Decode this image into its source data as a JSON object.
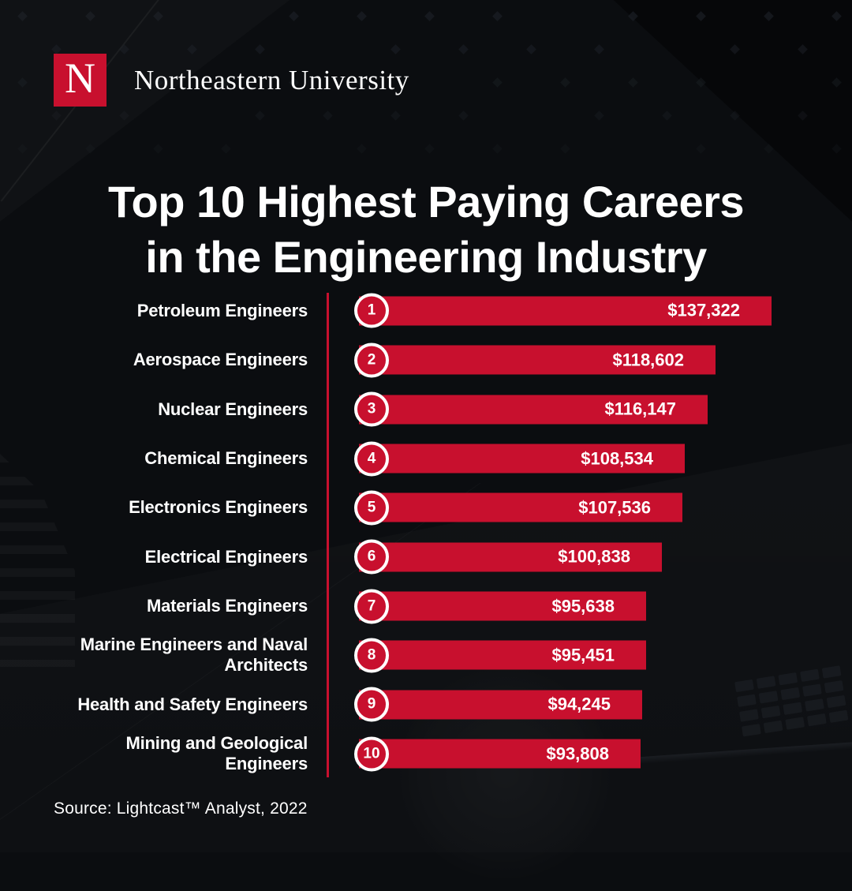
{
  "logo": {
    "mark": "N",
    "wordmark": "Northeastern University"
  },
  "title": {
    "line1": "Top 10 Highest Paying Careers",
    "line2": "in the Engineering Industry"
  },
  "chart_data": {
    "type": "bar",
    "orientation": "horizontal",
    "title": "Top 10 Highest Paying Careers in the Engineering Industry",
    "categories": [
      "Petroleum Engineers",
      "Aerospace Engineers",
      "Nuclear Engineers",
      "Chemical Engineers",
      "Electronics Engineers",
      "Electrical Engineers",
      "Materials Engineers",
      "Marine Engineers and Naval Architects",
      "Health and Safety Engineers",
      "Mining and Geological Engineers"
    ],
    "values": [
      137322,
      118602,
      116147,
      108534,
      107536,
      100838,
      95638,
      95451,
      94245,
      93808
    ],
    "value_labels": [
      "$137,322",
      "$118,602",
      "$116,147",
      "$108,534",
      "$107,536",
      "$100,838",
      "$95,638",
      "$95,451",
      "$94,245",
      "$93,808"
    ],
    "ranks": [
      "1",
      "2",
      "3",
      "4",
      "5",
      "6",
      "7",
      "8",
      "9",
      "10"
    ],
    "xlim": [
      0,
      137322
    ],
    "grid": false,
    "legend": false,
    "bar_color": "#c8102e",
    "value_label_color": "#ffffff",
    "category_label_color": "#ffffff"
  },
  "source": "Source: Lightcast™ Analyst, 2022",
  "colors": {
    "background": "#0b0d10",
    "accent_red": "#c8102e",
    "text_white": "#ffffff"
  }
}
